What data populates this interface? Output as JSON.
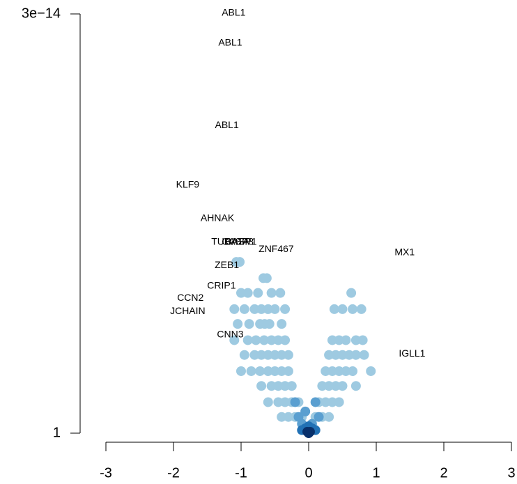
{
  "chart_data": {
    "type": "scatter",
    "xlim": [
      -3,
      3
    ],
    "xticks": [
      -3,
      -2,
      -1,
      0,
      1,
      2,
      3
    ],
    "ylim": [
      1,
      3e-14
    ],
    "yscale": "log",
    "yticks": [
      1,
      {
        "value": 3e-14,
        "label": "3e−14"
      }
    ],
    "series": [
      {
        "color": "#9ecae1",
        "x": [
          -1.07,
          -1.02,
          -0.67,
          -0.62,
          -0.42,
          -0.9,
          -1.0,
          -0.55,
          -0.75,
          -1.1,
          -0.95,
          -0.8,
          -0.7,
          -0.5,
          -0.35,
          -0.6,
          -1.05,
          -0.88,
          -0.72,
          -0.58,
          -0.4,
          -0.65,
          -1.1,
          -0.9,
          -0.78,
          -0.66,
          -0.55,
          -0.45,
          -0.35,
          -0.95,
          -0.8,
          -0.7,
          -0.6,
          -0.5,
          -0.4,
          -0.3,
          -1.0,
          -0.85,
          -0.72,
          -0.6,
          -0.5,
          -0.4,
          -0.3,
          -0.7,
          -0.55,
          -0.45,
          -0.35,
          -0.25,
          -0.6,
          -0.45,
          -0.35,
          -0.25,
          -0.15,
          -0.4,
          -0.3,
          -0.2,
          -0.1,
          0.63,
          0.5,
          0.78,
          0.38,
          0.65,
          0.35,
          0.45,
          0.55,
          0.7,
          0.8,
          0.3,
          0.4,
          0.5,
          0.6,
          0.7,
          0.82,
          0.92,
          0.25,
          0.35,
          0.45,
          0.55,
          0.65,
          0.2,
          0.3,
          0.4,
          0.5,
          0.7,
          0.15,
          0.25,
          0.35,
          0.45,
          0.1,
          0.2,
          0.3
        ],
        "values": [
          3e-06,
          3e-06,
          1e-05,
          1e-05,
          3e-05,
          3e-05,
          3e-05,
          3e-05,
          3e-05,
          0.0001,
          0.0001,
          0.0001,
          0.0001,
          0.0001,
          0.0001,
          0.0001,
          0.0003,
          0.0003,
          0.0003,
          0.0003,
          0.0003,
          0.0003,
          0.001,
          0.001,
          0.001,
          0.001,
          0.001,
          0.001,
          0.001,
          0.003,
          0.003,
          0.003,
          0.003,
          0.003,
          0.003,
          0.003,
          0.01,
          0.01,
          0.01,
          0.01,
          0.01,
          0.01,
          0.01,
          0.03,
          0.03,
          0.03,
          0.03,
          0.03,
          0.1,
          0.1,
          0.1,
          0.1,
          0.1,
          0.3,
          0.3,
          0.3,
          0.3,
          3e-05,
          0.0001,
          0.0001,
          0.0001,
          0.0001,
          0.001,
          0.001,
          0.001,
          0.001,
          0.001,
          0.003,
          0.003,
          0.003,
          0.003,
          0.003,
          0.003,
          0.01,
          0.01,
          0.01,
          0.01,
          0.01,
          0.01,
          0.03,
          0.03,
          0.03,
          0.03,
          0.03,
          0.1,
          0.1,
          0.1,
          0.1,
          0.3,
          0.3,
          0.3
        ]
      },
      {
        "color": "#5a9fd0",
        "x": [
          -0.2,
          -0.15,
          0.15,
          0.1,
          -0.1,
          0.05,
          -0.05
        ],
        "values": [
          0.1,
          0.3,
          0.3,
          0.1,
          0.5,
          0.5,
          0.2
        ]
      },
      {
        "color": "#2171b5",
        "x": [
          -0.05,
          0.05,
          0,
          -0.1,
          0.1
        ],
        "values": [
          0.7,
          0.7,
          0.6,
          0.8,
          0.8
        ]
      },
      {
        "color": "#08306b",
        "x": [
          0,
          0.02,
          -0.02,
          0
        ],
        "values": [
          0.95,
          0.9,
          0.9,
          1
        ]
      }
    ],
    "labels": [
      {
        "text": "ABL1",
        "x": -1.11,
        "y": 2.8e-14
      },
      {
        "text": "ABL1",
        "x": -1.16,
        "y": 2.6e-13
      },
      {
        "text": "ABL1",
        "x": -1.21,
        "y": 1.2e-10
      },
      {
        "text": "KLF9",
        "x": -1.79,
        "y": 1e-08
      },
      {
        "text": "AHNAK",
        "x": -1.35,
        "y": 1.2e-07
      },
      {
        "text": "TUBA1A",
        "x": -1.16,
        "y": 7e-07
      },
      {
        "text": "CASP8",
        "x": -1.05,
        "y": 7e-07
      },
      {
        "text": "BASP1",
        "x": -1.0,
        "y": 7e-07
      },
      {
        "text": "ZNF467",
        "x": -0.48,
        "y": 1.2e-06
      },
      {
        "text": "MX1",
        "x": 1.42,
        "y": 1.5e-06
      },
      {
        "text": "ZEB1",
        "x": -1.21,
        "y": 3.9e-06
      },
      {
        "text": "CRIP1",
        "x": -1.29,
        "y": 1.8e-05
      },
      {
        "text": "CCN2",
        "x": -1.75,
        "y": 4.4e-05
      },
      {
        "text": "JCHAIN",
        "x": -1.79,
        "y": 0.00012
      },
      {
        "text": "CNN3",
        "x": -1.16,
        "y": 0.00068
      },
      {
        "text": "IGLL1",
        "x": 1.53,
        "y": 0.0028
      }
    ]
  }
}
